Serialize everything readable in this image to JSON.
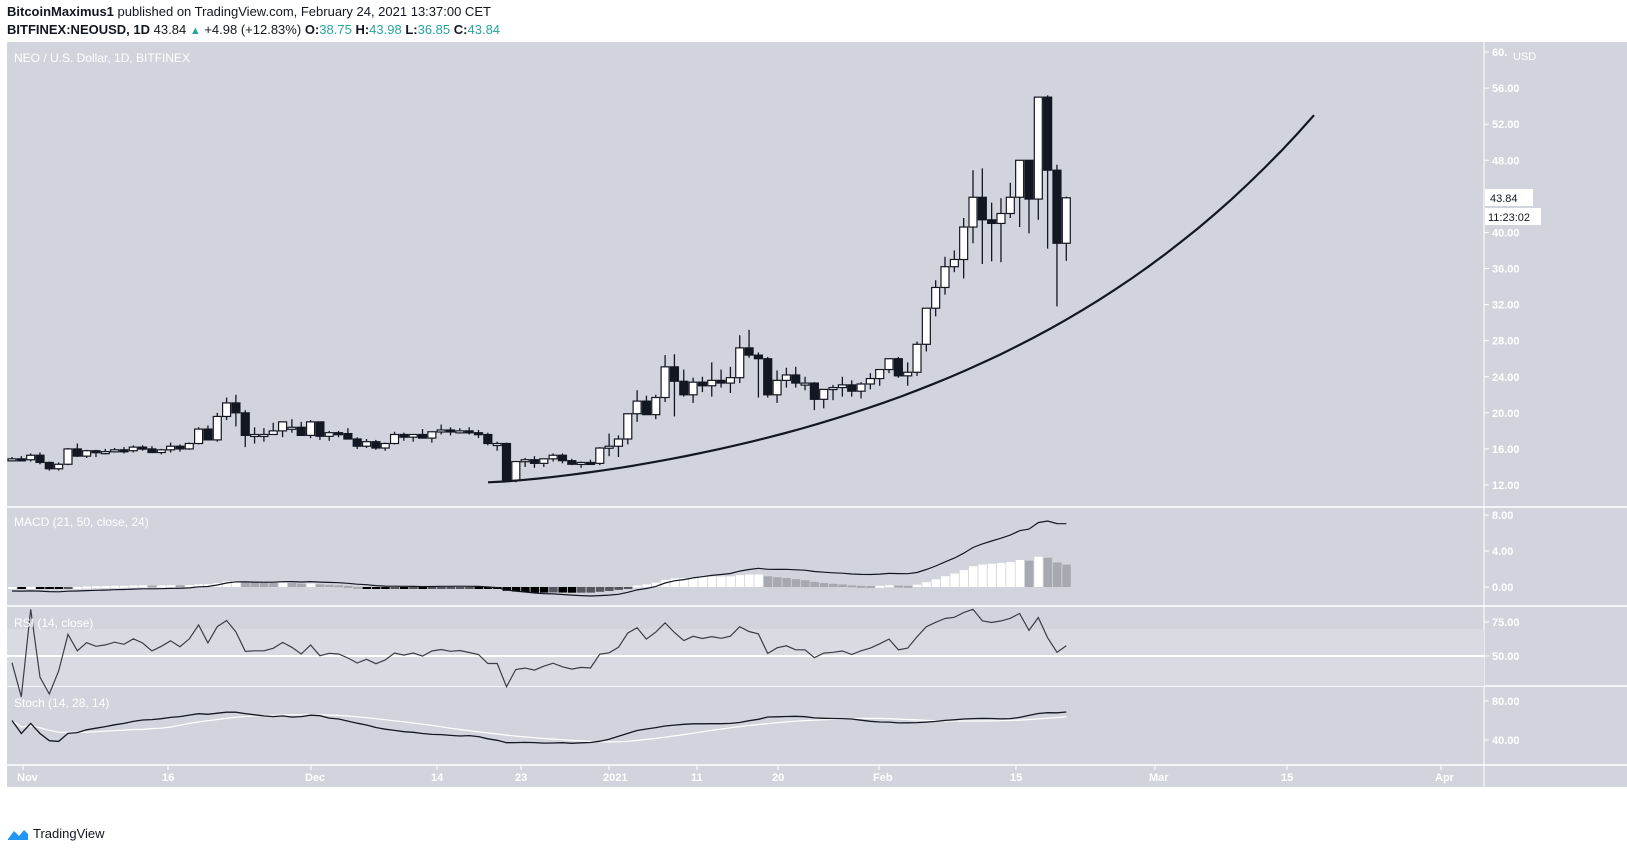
{
  "header": {
    "author": "BitcoinMaximus1",
    "published": "published on TradingView.com, February 24, 2021 13:37:00 CET",
    "symbol": "BITFINEX:NEOUSD, 1D",
    "last": "43.84",
    "change": "+4.98 (+12.83%)",
    "o_label": "O:",
    "o": "38.75",
    "h_label": "H:",
    "h": "43.98",
    "l_label": "L:",
    "l": "36.85",
    "c_label": "C:",
    "c": "43.84"
  },
  "main_pane": {
    "title": "NEO / U.S. Dollar, 1D, BITFINEX",
    "currency": "USD",
    "price_ticks": [
      "60.",
      "56.00",
      "52.00",
      "48.00",
      "44.00",
      "40.00",
      "36.00",
      "32.00",
      "28.00",
      "24.00",
      "20.00",
      "16.00",
      "12.00"
    ],
    "last_price_label": "43.84",
    "countdown_label": "11:23:02"
  },
  "macd_pane": {
    "title": "MACD (21, 50, close, 24)",
    "ticks": [
      "8.00",
      "4.00",
      "0.00"
    ]
  },
  "rsi_pane": {
    "title": "RSI (14, close)",
    "ticks": [
      "75.00",
      "50.00"
    ]
  },
  "stoch_pane": {
    "title": "Stoch (14, 28, 14)",
    "ticks": [
      "80.00",
      "40.00"
    ]
  },
  "time_axis": {
    "labels": [
      "Nov",
      "16",
      "Dec",
      "14",
      "23",
      "2021",
      "11",
      "20",
      "Feb",
      "15",
      "Mar",
      "15",
      "Apr"
    ]
  },
  "footer": {
    "brand": "TradingView"
  },
  "colors": {
    "background": "#d1d4dc",
    "up_candle": "#ffffff",
    "down_candle": "#131722",
    "teal": "#26a69a",
    "axis_text": "#ffffff",
    "brand_blue": "#2196f3"
  },
  "chart_data": {
    "type": "candlestick",
    "title": "NEO / U.S. Dollar, 1D, BITFINEX",
    "ylabel": "USD",
    "ylim": [
      11,
      60
    ],
    "x_start": "2020-11-01",
    "x_end": "2021-02-24",
    "ohlc": [
      [
        14.8,
        15.1,
        14.6,
        14.9
      ],
      [
        14.9,
        15.2,
        14.7,
        14.8
      ],
      [
        14.8,
        15.5,
        14.6,
        15.3
      ],
      [
        15.3,
        15.6,
        14.3,
        14.5
      ],
      [
        14.5,
        14.6,
        13.6,
        13.8
      ],
      [
        13.8,
        14.5,
        13.6,
        14.3
      ],
      [
        14.3,
        16.1,
        14.2,
        16.0
      ],
      [
        16.0,
        16.6,
        15.1,
        15.2
      ],
      [
        15.2,
        15.9,
        15.0,
        15.8
      ],
      [
        15.8,
        15.9,
        15.1,
        15.6
      ],
      [
        15.6,
        16.0,
        15.4,
        15.7
      ],
      [
        15.7,
        16.1,
        15.6,
        15.9
      ],
      [
        15.9,
        16.2,
        15.5,
        15.8
      ],
      [
        15.8,
        16.4,
        15.6,
        16.2
      ],
      [
        16.2,
        16.4,
        15.8,
        16.0
      ],
      [
        16.0,
        16.3,
        15.6,
        15.6
      ],
      [
        15.6,
        16.0,
        15.4,
        15.9
      ],
      [
        15.9,
        16.7,
        15.6,
        16.3
      ],
      [
        16.3,
        16.5,
        15.7,
        16.0
      ],
      [
        16.0,
        16.7,
        15.9,
        16.6
      ],
      [
        16.6,
        18.4,
        16.5,
        18.2
      ],
      [
        18.2,
        18.6,
        17.1,
        17.0
      ],
      [
        17.0,
        20.0,
        16.8,
        19.6
      ],
      [
        19.6,
        21.7,
        19.2,
        21.1
      ],
      [
        21.1,
        22.0,
        18.5,
        20.0
      ],
      [
        20.0,
        20.3,
        16.2,
        17.5
      ],
      [
        17.5,
        18.4,
        16.6,
        17.6
      ],
      [
        17.6,
        18.3,
        16.8,
        17.6
      ],
      [
        17.6,
        18.9,
        17.6,
        18.0
      ],
      [
        18.0,
        18.6,
        17.3,
        19.0
      ],
      [
        18.2,
        19.3,
        17.8,
        18.4
      ],
      [
        18.4,
        19.0,
        17.6,
        17.5
      ],
      [
        17.5,
        19.2,
        17.2,
        19.0
      ],
      [
        19.0,
        19.0,
        17.0,
        17.4
      ],
      [
        17.4,
        18.0,
        16.9,
        17.8
      ],
      [
        17.8,
        18.0,
        17.3,
        17.7
      ],
      [
        17.7,
        18.3,
        17.2,
        17.1
      ],
      [
        17.1,
        17.3,
        16.0,
        16.3
      ],
      [
        16.3,
        17.1,
        16.1,
        16.8
      ],
      [
        16.8,
        17.0,
        15.9,
        16.1
      ],
      [
        16.1,
        16.7,
        15.8,
        16.6
      ],
      [
        16.6,
        17.9,
        16.5,
        17.6
      ],
      [
        17.6,
        17.8,
        16.9,
        17.3
      ],
      [
        17.3,
        17.6,
        16.8,
        17.6
      ],
      [
        17.6,
        18.2,
        17.2,
        17.2
      ],
      [
        17.2,
        17.4,
        16.7,
        17.9
      ],
      [
        17.9,
        18.7,
        17.6,
        18.1
      ],
      [
        18.1,
        18.4,
        17.5,
        17.9
      ],
      [
        17.9,
        18.3,
        17.7,
        18.0
      ],
      [
        18.0,
        18.4,
        17.6,
        17.8
      ],
      [
        17.8,
        18.1,
        17.2,
        17.6
      ],
      [
        17.6,
        17.8,
        16.4,
        16.6
      ],
      [
        16.6,
        16.8,
        15.8,
        16.6
      ],
      [
        16.6,
        16.7,
        14.2,
        12.5
      ],
      [
        12.5,
        14.6,
        12.3,
        14.6
      ],
      [
        14.6,
        15.0,
        14.0,
        14.8
      ],
      [
        14.8,
        15.2,
        13.9,
        14.4
      ],
      [
        14.4,
        14.7,
        14.0,
        14.9
      ],
      [
        14.9,
        15.5,
        14.6,
        15.3
      ],
      [
        15.3,
        15.5,
        14.4,
        14.7
      ],
      [
        14.7,
        14.9,
        14.2,
        14.3
      ],
      [
        14.3,
        14.6,
        13.9,
        14.5
      ],
      [
        14.5,
        14.8,
        14.3,
        14.4
      ],
      [
        14.4,
        16.2,
        14.2,
        16.1
      ],
      [
        16.1,
        17.7,
        15.2,
        16.3
      ],
      [
        16.3,
        17.5,
        15.1,
        17.1
      ],
      [
        17.1,
        19.9,
        16.5,
        19.9
      ],
      [
        19.9,
        22.5,
        19.0,
        21.3
      ],
      [
        21.3,
        21.9,
        19.9,
        19.8
      ],
      [
        19.8,
        22.0,
        19.3,
        21.7
      ],
      [
        21.7,
        26.4,
        21.2,
        25.1
      ],
      [
        25.1,
        26.5,
        19.6,
        23.5
      ],
      [
        23.5,
        24.8,
        21.8,
        22.0
      ],
      [
        22.0,
        23.9,
        21.1,
        23.4
      ],
      [
        23.4,
        24.0,
        22.3,
        23.0
      ],
      [
        23.0,
        25.6,
        21.8,
        23.6
      ],
      [
        23.6,
        24.8,
        22.8,
        23.3
      ],
      [
        23.3,
        25.1,
        22.2,
        23.9
      ],
      [
        23.9,
        28.6,
        23.3,
        27.2
      ],
      [
        27.2,
        29.2,
        26.1,
        26.4
      ],
      [
        26.4,
        26.7,
        21.7,
        26.0
      ],
      [
        26.0,
        26.2,
        21.7,
        22.0
      ],
      [
        22.0,
        24.7,
        21.1,
        23.6
      ],
      [
        23.6,
        25.0,
        22.8,
        24.2
      ],
      [
        24.2,
        25.1,
        22.8,
        23.3
      ],
      [
        23.3,
        24.0,
        22.5,
        23.3
      ],
      [
        23.3,
        23.4,
        20.3,
        21.5
      ],
      [
        21.5,
        22.6,
        20.5,
        22.6
      ],
      [
        22.6,
        23.1,
        21.4,
        22.8
      ],
      [
        22.8,
        24.0,
        21.8,
        23.1
      ],
      [
        23.1,
        23.6,
        21.8,
        22.4
      ],
      [
        22.4,
        23.4,
        21.6,
        23.2
      ],
      [
        23.2,
        24.4,
        22.6,
        23.8
      ],
      [
        23.8,
        24.0,
        23.0,
        24.8
      ],
      [
        24.8,
        25.9,
        24.4,
        26.0
      ],
      [
        26.0,
        26.2,
        23.9,
        24.1
      ],
      [
        24.1,
        25.6,
        23.0,
        24.5
      ],
      [
        24.5,
        27.9,
        24.1,
        27.6
      ],
      [
        27.6,
        31.0,
        26.8,
        31.6
      ],
      [
        31.6,
        34.7,
        30.7,
        33.9
      ],
      [
        33.9,
        37.3,
        33.1,
        36.2
      ],
      [
        36.2,
        38.0,
        35.6,
        37.0
      ],
      [
        37.0,
        41.6,
        34.9,
        40.6
      ],
      [
        40.6,
        46.9,
        38.8,
        43.9
      ],
      [
        43.9,
        47.1,
        36.5,
        41.4
      ],
      [
        41.4,
        43.3,
        36.8,
        41.0
      ],
      [
        41.0,
        43.8,
        36.7,
        42.1
      ],
      [
        42.1,
        45.5,
        41.6,
        43.9
      ],
      [
        43.9,
        45.6,
        40.6,
        48.0
      ],
      [
        48.0,
        48.0,
        39.9,
        43.7
      ],
      [
        43.7,
        55.0,
        41.4,
        55.0
      ],
      [
        55.0,
        55.2,
        38.2,
        46.9
      ],
      [
        46.9,
        47.5,
        31.8,
        38.8
      ],
      [
        38.8,
        43.98,
        36.85,
        43.84
      ]
    ],
    "trendline": {
      "type": "parabolic-curve",
      "start": [
        "2020-12-22",
        12.3
      ],
      "end": [
        "2021-03-19",
        53.0
      ]
    },
    "indicators": {
      "macd": {
        "params": "21, 50, close, 24",
        "macd_last": 7.4,
        "histogram_peak": 3.2,
        "ylim": [
          -1,
          9
        ]
      },
      "rsi": {
        "params": "14, close",
        "last": 55,
        "peak": 83,
        "bands": [
          50,
          70
        ]
      },
      "stoch": {
        "params": "14, 28, 14",
        "k_last": 82,
        "d_last": 62
      }
    }
  }
}
